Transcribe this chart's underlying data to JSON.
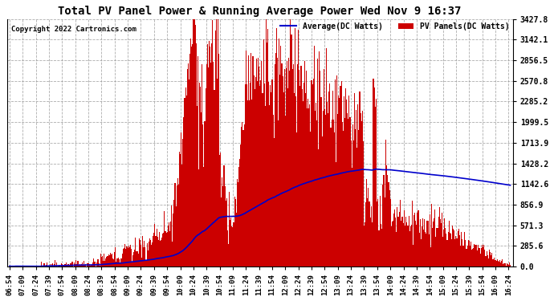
{
  "title": "Total PV Panel Power & Running Average Power Wed Nov 9 16:37",
  "copyright": "Copyright 2022 Cartronics.com",
  "legend_avg": "Average(DC Watts)",
  "legend_pv": "PV Panels(DC Watts)",
  "bg_color": "#ffffff",
  "plot_bg_color": "#ffffff",
  "grid_color": "#999999",
  "bar_color": "#cc0000",
  "line_color": "#0000cc",
  "yticks": [
    0.0,
    285.6,
    571.3,
    856.9,
    1142.6,
    1428.2,
    1713.9,
    1999.5,
    2285.2,
    2570.8,
    2856.5,
    3142.1,
    3427.8
  ],
  "ymax": 3427.8,
  "t_start": 414,
  "t_end": 986,
  "x_tick_labels": [
    "06:54",
    "07:09",
    "07:24",
    "07:39",
    "07:54",
    "08:09",
    "08:24",
    "08:39",
    "08:54",
    "09:09",
    "09:24",
    "09:39",
    "09:54",
    "10:09",
    "10:24",
    "10:39",
    "10:54",
    "11:09",
    "11:24",
    "11:39",
    "11:54",
    "12:09",
    "12:24",
    "12:39",
    "12:54",
    "13:09",
    "13:24",
    "13:39",
    "13:54",
    "14:09",
    "14:24",
    "14:39",
    "14:54",
    "15:09",
    "15:24",
    "15:39",
    "15:54",
    "16:09",
    "16:24"
  ],
  "x_tick_minutes": [
    414,
    429,
    444,
    459,
    474,
    489,
    504,
    519,
    534,
    549,
    564,
    579,
    594,
    609,
    624,
    639,
    654,
    669,
    684,
    699,
    714,
    729,
    744,
    759,
    774,
    789,
    804,
    819,
    834,
    849,
    864,
    879,
    894,
    909,
    924,
    939,
    954,
    969,
    984
  ]
}
